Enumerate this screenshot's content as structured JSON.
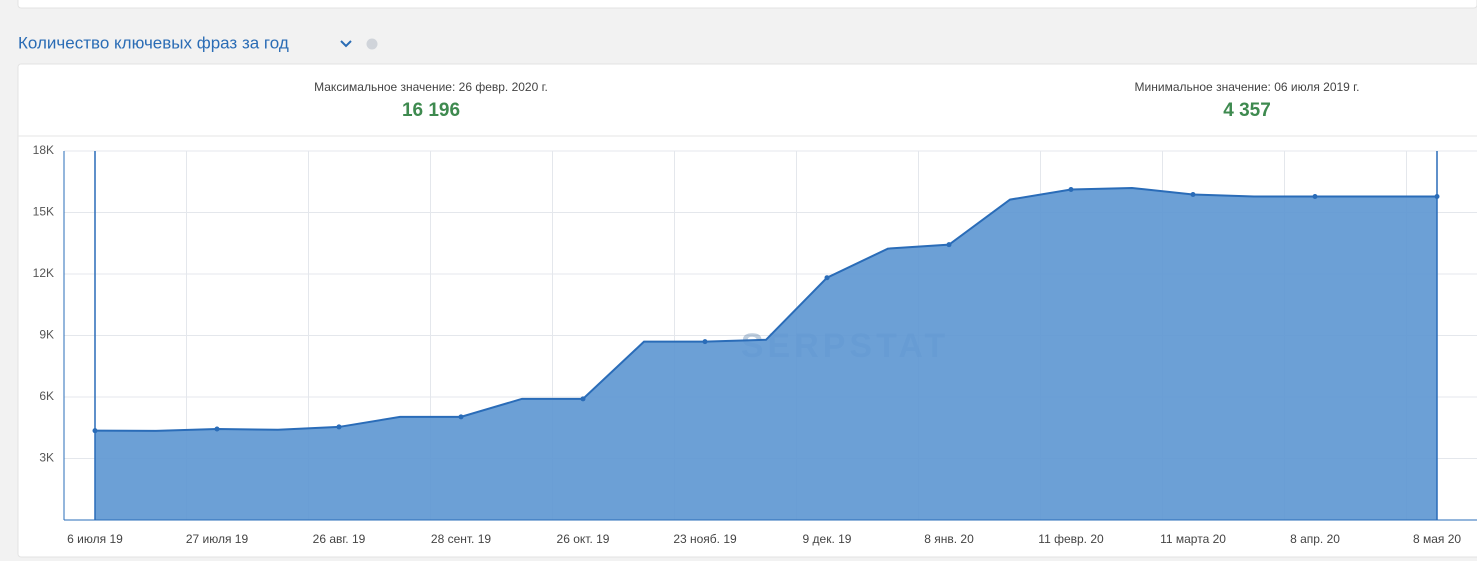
{
  "header": {
    "title": "Количество ключевых фраз за год"
  },
  "stats": [
    {
      "label": "Максимальное значение: 26 февр. 2020 г.",
      "value": "16 196"
    },
    {
      "label": "Минимальное значение: 06 июля 2019 г.",
      "value": "4 357"
    }
  ],
  "chart_data": {
    "type": "area",
    "watermark": "SERPSTAT",
    "color": "#5f98d3",
    "line_color": "#2a6cb8",
    "grid": true,
    "categories": [
      "6 июля 19",
      null,
      "27 июля 19",
      null,
      "26 авг. 19",
      null,
      "28 сент. 19",
      null,
      "26 окт. 19",
      null,
      "23 нояб. 19",
      null,
      "9 дек. 19",
      null,
      "8 янв. 20",
      null,
      "11 февр. 20",
      null,
      "11 марта 20",
      null,
      "8 апр. 20",
      null,
      "8 мая 20"
    ],
    "values": [
      4357,
      4350,
      4440,
      4400,
      4540,
      5030,
      5030,
      5910,
      5910,
      8700,
      8700,
      8790,
      11820,
      13240,
      13430,
      15630,
      16120,
      16196,
      15880,
      15780,
      15780,
      15780,
      15780
    ],
    "ylim": [
      0,
      18000
    ],
    "yticks": [
      {
        "value": 3000,
        "label": "3K"
      },
      {
        "value": 6000,
        "label": "6K"
      },
      {
        "value": 9000,
        "label": "9K"
      },
      {
        "value": 12000,
        "label": "12K"
      },
      {
        "value": 15000,
        "label": "15K"
      },
      {
        "value": 18000,
        "label": "18K"
      }
    ]
  }
}
